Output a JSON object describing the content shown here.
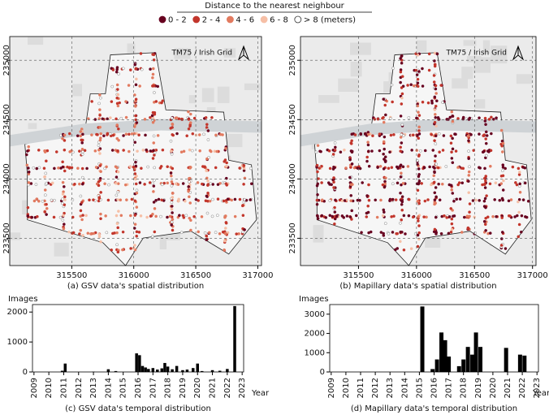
{
  "legend": {
    "title": "Distance to the nearest neighbour",
    "entries": [
      {
        "label": "0 - 2",
        "color": "#67001f"
      },
      {
        "label": "2 - 4",
        "color": "#c2352b"
      },
      {
        "label": "4 - 6",
        "color": "#e27a5f"
      },
      {
        "label": "6 - 8",
        "color": "#f6bfa6"
      },
      {
        "label": "> 8 (meters)",
        "color": "#ffffff"
      }
    ]
  },
  "chart_data": [
    {
      "type": "map",
      "annotation": "TM75 / Irish Grid",
      "caption": "(a) GSV data's spatial distribution",
      "xlim": [
        315000,
        317030
      ],
      "ylim": [
        233270,
        235200
      ],
      "xticks": [
        315500,
        316000,
        316500,
        317000
      ],
      "yticks": [
        233500,
        234000,
        234500,
        235000
      ]
    },
    {
      "type": "map",
      "annotation": "TM75 / Irish Grid",
      "caption": "(b) Mapillary data's spatial distribution",
      "xlim": [
        315000,
        317030
      ],
      "ylim": [
        233270,
        235200
      ],
      "xticks": [
        315500,
        316000,
        316500,
        317000
      ],
      "yticks": [
        233500,
        234000,
        234500,
        235000
      ]
    },
    {
      "type": "bar",
      "caption": "(c) GSV data's temporal distribution",
      "ylabel": "Images",
      "xlabel": "Year",
      "color": "#000000",
      "x": [
        2010.9,
        2011.1,
        2013.0,
        2014.0,
        2014.5,
        2015.9,
        2016.1,
        2016.3,
        2016.5,
        2016.7,
        2017.0,
        2017.3,
        2017.6,
        2017.8,
        2018.0,
        2018.3,
        2018.6,
        2019.0,
        2019.3,
        2019.7,
        2020.0,
        2020.3,
        2021.0,
        2021.5,
        2022.0,
        2022.5
      ],
      "values": [
        40,
        280,
        10,
        90,
        30,
        620,
        560,
        200,
        150,
        100,
        130,
        80,
        120,
        300,
        180,
        90,
        200,
        60,
        80,
        130,
        280,
        30,
        60,
        40,
        100,
        2200
      ],
      "xlim": [
        2008.9,
        2023.1
      ],
      "ylim": [
        0,
        2250
      ],
      "xticks": [
        2009,
        2010,
        2011,
        2012,
        2013,
        2014,
        2015,
        2016,
        2017,
        2018,
        2019,
        2020,
        2021,
        2022,
        2023
      ],
      "yticks": [
        0,
        1000,
        2000
      ]
    },
    {
      "type": "bar",
      "caption": "(d) Mapillary data's temporal distribution",
      "ylabel": "Images",
      "xlabel": "Year",
      "color": "#000000",
      "x": [
        2015.2,
        2015.9,
        2016.2,
        2016.5,
        2016.75,
        2017.0,
        2017.7,
        2018.0,
        2018.3,
        2018.6,
        2018.85,
        2019.15,
        2020.9,
        2021.85,
        2022.15
      ],
      "values": [
        3400,
        150,
        650,
        2050,
        1650,
        800,
        300,
        650,
        1300,
        900,
        2050,
        1300,
        1250,
        900,
        850
      ],
      "xlim": [
        2008.9,
        2023.1
      ],
      "ylim": [
        0,
        3500
      ],
      "xticks": [
        2009,
        2010,
        2011,
        2012,
        2013,
        2014,
        2015,
        2016,
        2017,
        2018,
        2019,
        2020,
        2021,
        2022,
        2023
      ],
      "yticks": [
        0,
        1000,
        2000,
        3000
      ]
    }
  ]
}
